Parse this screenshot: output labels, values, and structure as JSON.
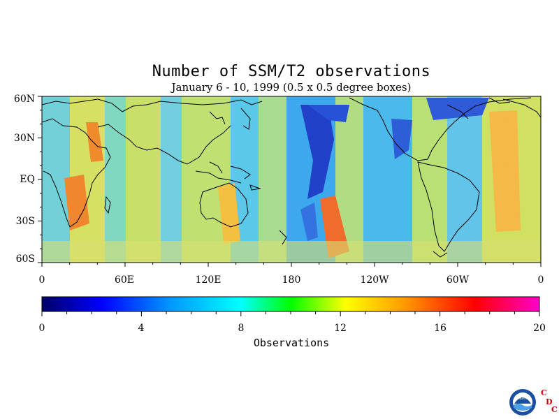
{
  "title": "Number of SSM/T2 observations",
  "subtitle": "January 6 - 10, 1999 (0.5 x 0.5 degree boxes)",
  "lat_labels": [
    "60N",
    "30N",
    "EQ",
    "30S",
    "60S"
  ],
  "lon_labels": [
    "0",
    "60E",
    "120E",
    "180",
    "120W",
    "60W",
    "0"
  ],
  "colorbar": {
    "label": "Observations",
    "ticks": [
      "0",
      "4",
      "8",
      "12",
      "16",
      "20"
    ],
    "range": [
      0,
      20
    ],
    "colors": [
      "#000066",
      "#0000ff",
      "#0099ff",
      "#00ffff",
      "#00ff00",
      "#ffff00",
      "#ff9900",
      "#ff0000",
      "#ff00cc"
    ]
  },
  "logo": {
    "name": "NOAA",
    "text": "CDC"
  }
}
